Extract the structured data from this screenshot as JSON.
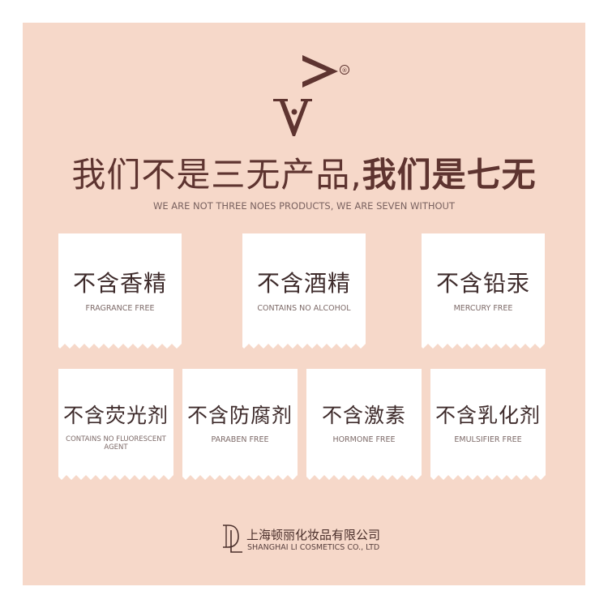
{
  "brand": {
    "registered_mark": "®"
  },
  "headline": {
    "part1": "我们不是三无产品,",
    "part2": "我们是七无"
  },
  "subline": "WE ARE NOT THREE NOES PRODUCTS, WE ARE SEVEN WITHOUT",
  "cards_row1": [
    {
      "zh": "不含香精",
      "en": "FRAGRANCE FREE"
    },
    {
      "zh": "不含酒精",
      "en": "CONTAINS NO ALCOHOL"
    },
    {
      "zh": "不含铅汞",
      "en": "MERCURY FREE"
    }
  ],
  "cards_row2": [
    {
      "zh": "不含荧光剂",
      "en": "CONTAINS NO FLUORESCENT AGENT"
    },
    {
      "zh": "不含防腐剂",
      "en": "PARABEN FREE"
    },
    {
      "zh": "不含激素",
      "en": "HORMONE FREE"
    },
    {
      "zh": "不含乳化剂",
      "en": "EMULSIFIER FREE"
    }
  ],
  "company": {
    "name_cn": "上海顿丽化妆品有限公司",
    "name_en": "SHANGHAI LI COSMETICS CO., LTD"
  },
  "colors": {
    "panel": "#f6d8c9",
    "brand_dark": "#5e3430",
    "card": "#ffffff"
  }
}
